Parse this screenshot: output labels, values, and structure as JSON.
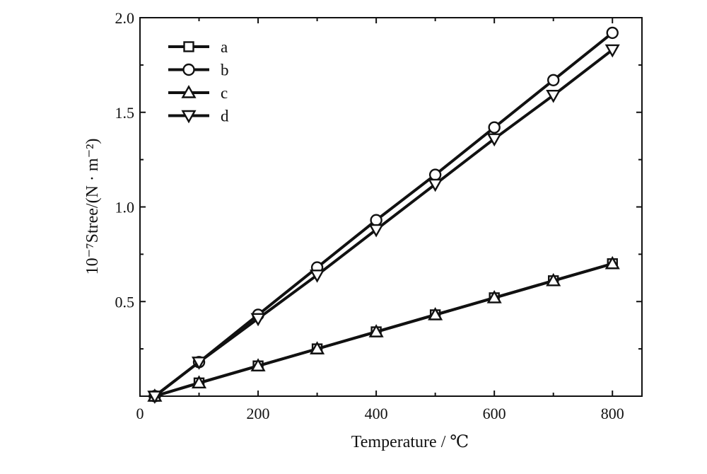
{
  "chart_data": {
    "type": "line",
    "xlabel": "Temperature / ℃",
    "ylabel": "10⁻⁷Stree/(N · m⁻²)",
    "xlim": [
      0,
      850
    ],
    "ylim": [
      0,
      2.0
    ],
    "x_ticks": [
      "0",
      "200",
      "400",
      "600",
      "800"
    ],
    "x_tick_values": [
      0,
      200,
      400,
      600,
      800
    ],
    "y_ticks": [
      "0.5",
      "1.0",
      "1.5",
      "2.0"
    ],
    "y_tick_values": [
      0.5,
      1.0,
      1.5,
      2.0
    ],
    "grid": false,
    "legend_position": "top-left",
    "series": [
      {
        "name": "a",
        "marker": "square",
        "x": [
          25,
          100,
          200,
          300,
          400,
          500,
          600,
          700,
          800
        ],
        "y": [
          0.0,
          0.07,
          0.16,
          0.25,
          0.34,
          0.43,
          0.52,
          0.61,
          0.7
        ]
      },
      {
        "name": "b",
        "marker": "circle",
        "x": [
          25,
          100,
          200,
          300,
          400,
          500,
          600,
          700,
          800
        ],
        "y": [
          0.0,
          0.18,
          0.43,
          0.68,
          0.93,
          1.17,
          1.42,
          1.67,
          1.92
        ]
      },
      {
        "name": "c",
        "marker": "triangle-up",
        "x": [
          25,
          100,
          200,
          300,
          400,
          500,
          600,
          700,
          800
        ],
        "y": [
          0.0,
          0.07,
          0.16,
          0.25,
          0.34,
          0.43,
          0.52,
          0.61,
          0.7
        ]
      },
      {
        "name": "d",
        "marker": "triangle-down",
        "x": [
          25,
          100,
          200,
          300,
          400,
          500,
          600,
          700,
          800
        ],
        "y": [
          0.0,
          0.18,
          0.41,
          0.64,
          0.88,
          1.12,
          1.36,
          1.59,
          1.83
        ]
      }
    ]
  }
}
